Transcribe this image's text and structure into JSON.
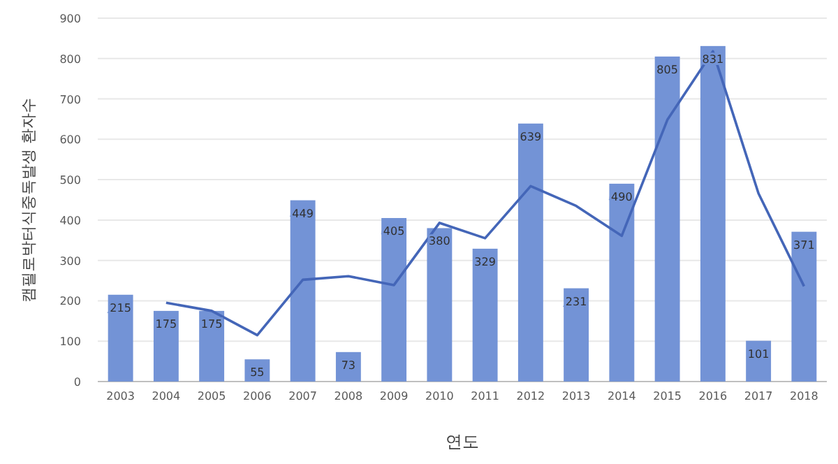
{
  "chart_data": {
    "type": "bar",
    "xlabel": "연도",
    "ylabel": "캠필로박터식중독발생 환자수",
    "categories": [
      "2003",
      "2004",
      "2005",
      "2006",
      "2007",
      "2008",
      "2009",
      "2010",
      "2011",
      "2012",
      "2013",
      "2014",
      "2015",
      "2016",
      "2017",
      "2018"
    ],
    "series": [
      {
        "color": "#7393d6",
        "values": [
          215,
          175,
          175,
          55,
          449,
          73,
          405,
          380,
          329,
          639,
          231,
          490,
          805,
          831,
          101,
          371
        ],
        "value_labels": [
          "215",
          "175",
          "175",
          "55",
          "449",
          "73",
          "405",
          "380",
          "329",
          "639",
          "231",
          "490",
          "805",
          "831",
          "101",
          "371"
        ]
      },
      {
        "type": "line",
        "color": "#4466b8",
        "values": [
          null,
          195,
          175,
          115,
          252,
          261,
          239,
          393,
          355,
          484,
          435,
          361,
          648,
          818,
          466,
          236
        ]
      }
    ],
    "ylim": [
      0,
      900
    ],
    "yticks": [
      0,
      100,
      200,
      300,
      400,
      500,
      600,
      700,
      800,
      900
    ],
    "grid": "y"
  }
}
